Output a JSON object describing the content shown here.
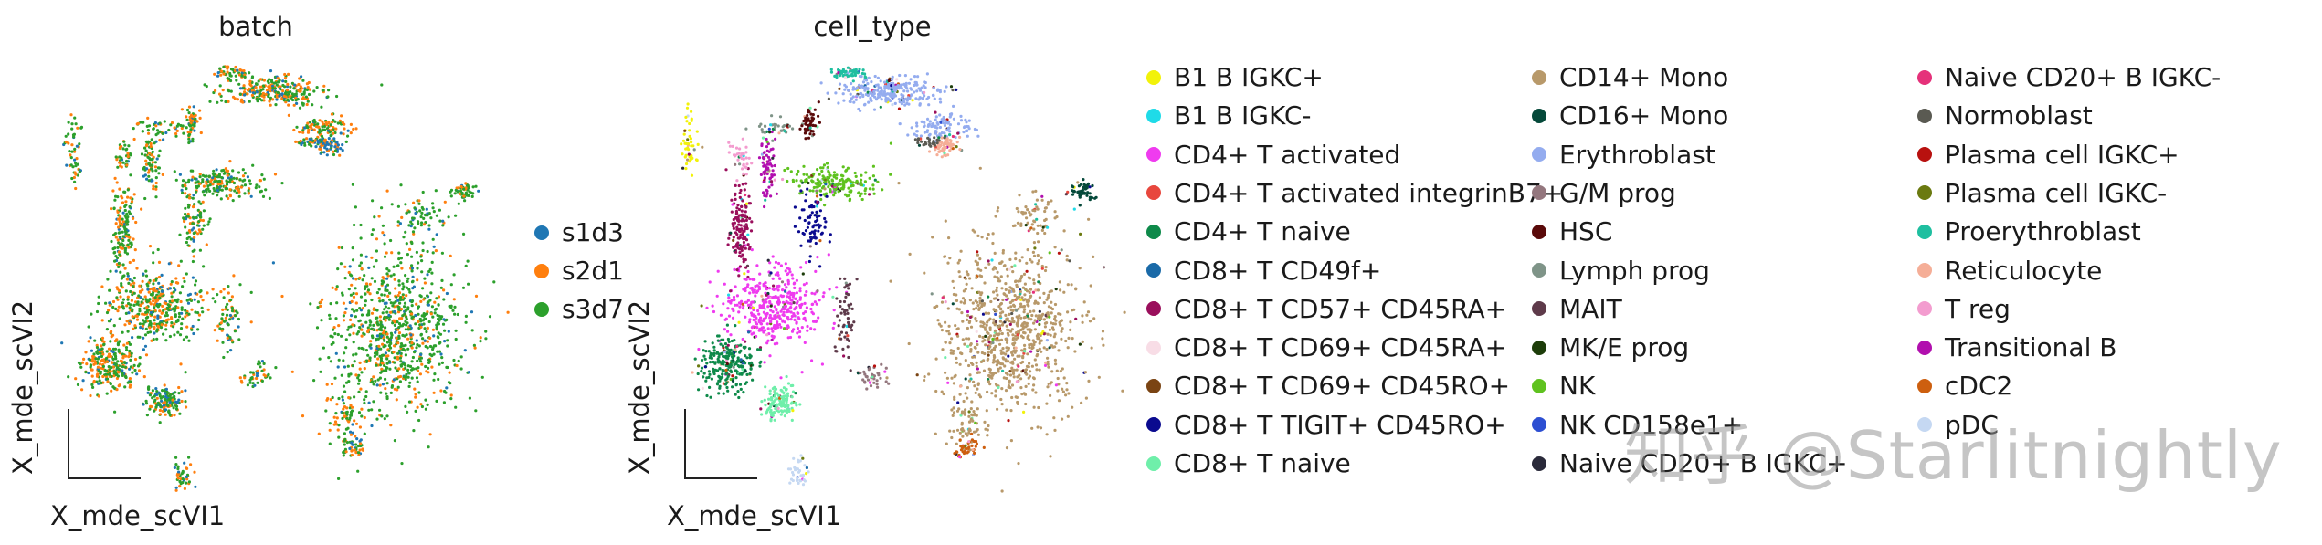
{
  "chart_data": [
    {
      "type": "scatter",
      "title": "batch",
      "xlabel": "X_mde_scVI1",
      "ylabel": "X_mde_scVI2",
      "grid": false,
      "legend_position": "right",
      "series": [
        {
          "name": "s1d3",
          "color": "#1f77b4"
        },
        {
          "name": "s2d1",
          "color": "#ff7f0e"
        },
        {
          "name": "s3d7",
          "color": "#2ca02c"
        }
      ]
    },
    {
      "type": "scatter",
      "title": "cell_type",
      "xlabel": "X_mde_scVI1",
      "ylabel": "X_mde_scVI2",
      "grid": false,
      "legend_position": "right",
      "series": [
        {
          "name": "B1 B IGKC+",
          "color": "#f2f20a"
        },
        {
          "name": "B1 B IGKC-",
          "color": "#1fdbe8"
        },
        {
          "name": "CD4+ T activated",
          "color": "#ef3bef"
        },
        {
          "name": "CD4+ T activated integrinB7+",
          "color": "#e8473d"
        },
        {
          "name": "CD4+ T naive",
          "color": "#0e8a4a"
        },
        {
          "name": "CD8+ T CD49f+",
          "color": "#1a6aa8"
        },
        {
          "name": "CD8+ T CD57+ CD45RA+",
          "color": "#9a0f5c"
        },
        {
          "name": "CD8+ T CD69+ CD45RA+",
          "color": "#f8dde6"
        },
        {
          "name": "CD8+ T CD69+ CD45RO+",
          "color": "#7a4413"
        },
        {
          "name": "CD8+ T TIGIT+ CD45RO+",
          "color": "#0a0a8f"
        },
        {
          "name": "CD8+ T naive",
          "color": "#6fefaa"
        },
        {
          "name": "CD14+ Mono",
          "color": "#b8996a"
        },
        {
          "name": "CD16+ Mono",
          "color": "#05493a"
        },
        {
          "name": "Erythroblast",
          "color": "#94acef"
        },
        {
          "name": "G/M prog",
          "color": "#94777e"
        },
        {
          "name": "HSC",
          "color": "#5a0a0a"
        },
        {
          "name": "Lymph prog",
          "color": "#7f9488"
        },
        {
          "name": "MAIT",
          "color": "#5e3a4a"
        },
        {
          "name": "MK/E prog",
          "color": "#1d3d0a"
        },
        {
          "name": "NK",
          "color": "#5fc21f"
        },
        {
          "name": "NK CD158e1+",
          "color": "#2d4fd2"
        },
        {
          "name": "Naive CD20+ B IGKC+",
          "color": "#2a2a3a"
        },
        {
          "name": "Naive CD20+ B IGKC-",
          "color": "#e5317a"
        },
        {
          "name": "Normoblast",
          "color": "#5a5a52"
        },
        {
          "name": "Plasma cell IGKC+",
          "color": "#b8110f"
        },
        {
          "name": "Plasma cell IGKC-",
          "color": "#6b7a10"
        },
        {
          "name": "Proerythroblast",
          "color": "#1fbfa0"
        },
        {
          "name": "Reticulocyte",
          "color": "#f5ae97"
        },
        {
          "name": "T reg",
          "color": "#f39ccf"
        },
        {
          "name": "Transitional B",
          "color": "#b10fae"
        },
        {
          "name": "cDC2",
          "color": "#cd5f0f"
        },
        {
          "name": "pDC",
          "color": "#c5d8f2"
        }
      ]
    }
  ],
  "watermark": "知乎 @Starlitnightly"
}
